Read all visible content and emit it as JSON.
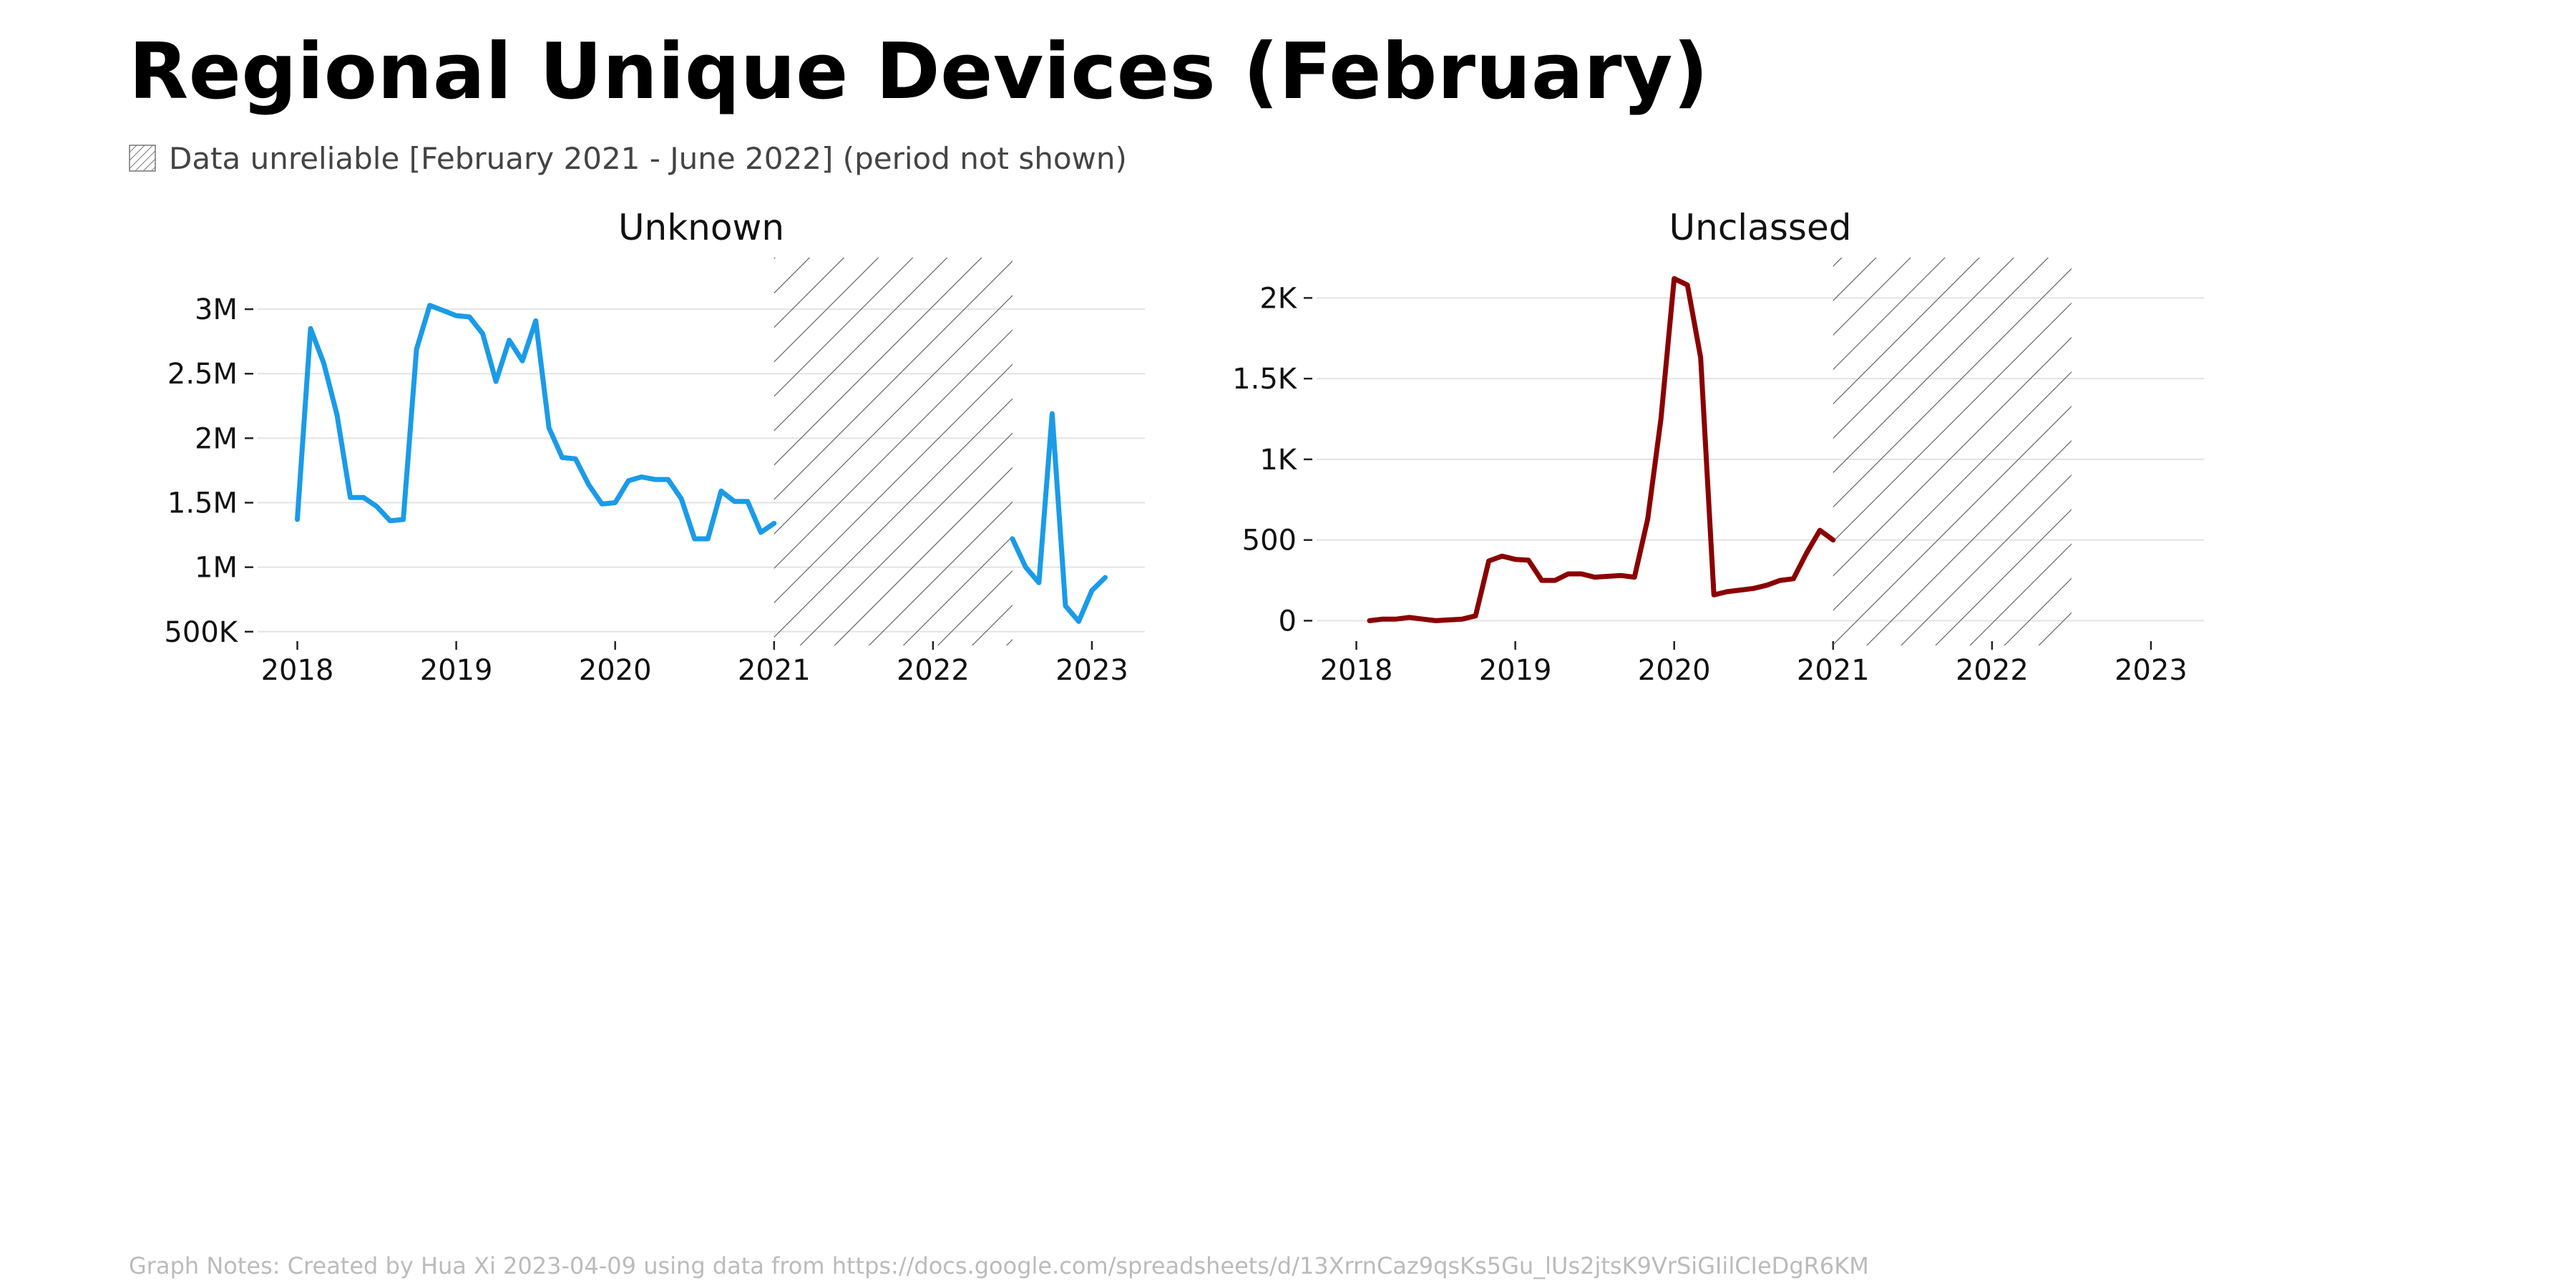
{
  "title": "Regional Unique Devices (February)",
  "legend": {
    "text": "Data unreliable [February 2021 - June 2022] (period not shown)",
    "swatch": "hatched-swatch"
  },
  "footnote": "Graph Notes: Created by Hua Xi 2023-04-09 using data from https://docs.google.com/spreadsheets/d/13XrrnCaz9qsKs5Gu_lUs2jtsK9VrSiGIilCIeDgR6KM",
  "chart_data": [
    {
      "type": "line",
      "title": "Unknown",
      "color": "#1a9be8",
      "x_ticks": [
        "2018",
        "2019",
        "2020",
        "2021",
        "2022",
        "2023"
      ],
      "y_ticks": [
        "500K",
        "1M",
        "1.5M",
        "2M",
        "2.5M",
        "3M"
      ],
      "y_tick_values": [
        500000,
        1000000,
        1500000,
        2000000,
        2500000,
        3000000
      ],
      "xlim": [
        "2017-10",
        "2023-05"
      ],
      "ylim": [
        460000,
        3400000
      ],
      "unreliable_period": [
        "2021-01",
        "2022-07"
      ],
      "grid": "horizontal",
      "series": [
        {
          "x": [
            "2018-01",
            "2018-02",
            "2018-03",
            "2018-04",
            "2018-05",
            "2018-06",
            "2018-07",
            "2018-08",
            "2018-09",
            "2018-10",
            "2018-11",
            "2018-12",
            "2019-01",
            "2019-02",
            "2019-03",
            "2019-04",
            "2019-05",
            "2019-06",
            "2019-07",
            "2019-08",
            "2019-09",
            "2019-10",
            "2019-11",
            "2019-12",
            "2020-01",
            "2020-02",
            "2020-03",
            "2020-04",
            "2020-05",
            "2020-06",
            "2020-07",
            "2020-08",
            "2020-09",
            "2020-10",
            "2020-11",
            "2020-12",
            "2021-01"
          ],
          "y": [
            1370000,
            2850000,
            2580000,
            2180000,
            1540000,
            1540000,
            1470000,
            1360000,
            1370000,
            2690000,
            3030000,
            2990000,
            2950000,
            2940000,
            2810000,
            2440000,
            2760000,
            2600000,
            2910000,
            2080000,
            1850000,
            1840000,
            1640000,
            1490000,
            1500000,
            1670000,
            1700000,
            1680000,
            1680000,
            1530000,
            1220000,
            1220000,
            1590000,
            1510000,
            1510000,
            1270000,
            1340000
          ]
        },
        {
          "x": [
            "2022-07",
            "2022-08",
            "2022-09",
            "2022-10",
            "2022-11",
            "2022-12",
            "2023-01",
            "2023-02"
          ],
          "y": [
            1220000,
            1000000,
            880000,
            2190000,
            700000,
            580000,
            820000,
            920000
          ]
        }
      ]
    },
    {
      "type": "line",
      "title": "Unclassed",
      "color": "#8b0000",
      "x_ticks": [
        "2018",
        "2019",
        "2020",
        "2021",
        "2022",
        "2023"
      ],
      "y_ticks": [
        "0",
        "500",
        "1K",
        "1.5K",
        "2K"
      ],
      "y_tick_values": [
        0,
        500,
        1000,
        1500,
        2000
      ],
      "xlim": [
        "2017-10",
        "2023-05"
      ],
      "ylim": [
        -100,
        2250
      ],
      "unreliable_period": [
        "2021-01",
        "2022-07"
      ],
      "grid": "horizontal",
      "series": [
        {
          "x": [
            "2018-02",
            "2018-03",
            "2018-04",
            "2018-05",
            "2018-06",
            "2018-07",
            "2018-08",
            "2018-09",
            "2018-10",
            "2018-11",
            "2018-12",
            "2019-01",
            "2019-02",
            "2019-03",
            "2019-04",
            "2019-05",
            "2019-06",
            "2019-07",
            "2019-08",
            "2019-09",
            "2019-10",
            "2019-11",
            "2019-12",
            "2020-01",
            "2020-02",
            "2020-03",
            "2020-04",
            "2020-05",
            "2020-06",
            "2020-07",
            "2020-08",
            "2020-09",
            "2020-10",
            "2020-11",
            "2020-12",
            "2021-01"
          ],
          "y": [
            0,
            10,
            10,
            20,
            10,
            0,
            5,
            10,
            30,
            370,
            400,
            380,
            375,
            250,
            250,
            290,
            290,
            270,
            275,
            280,
            270,
            630,
            1250,
            2120,
            2080,
            1630,
            160,
            180,
            190,
            200,
            220,
            250,
            260,
            420,
            560,
            500
          ]
        }
      ]
    }
  ]
}
